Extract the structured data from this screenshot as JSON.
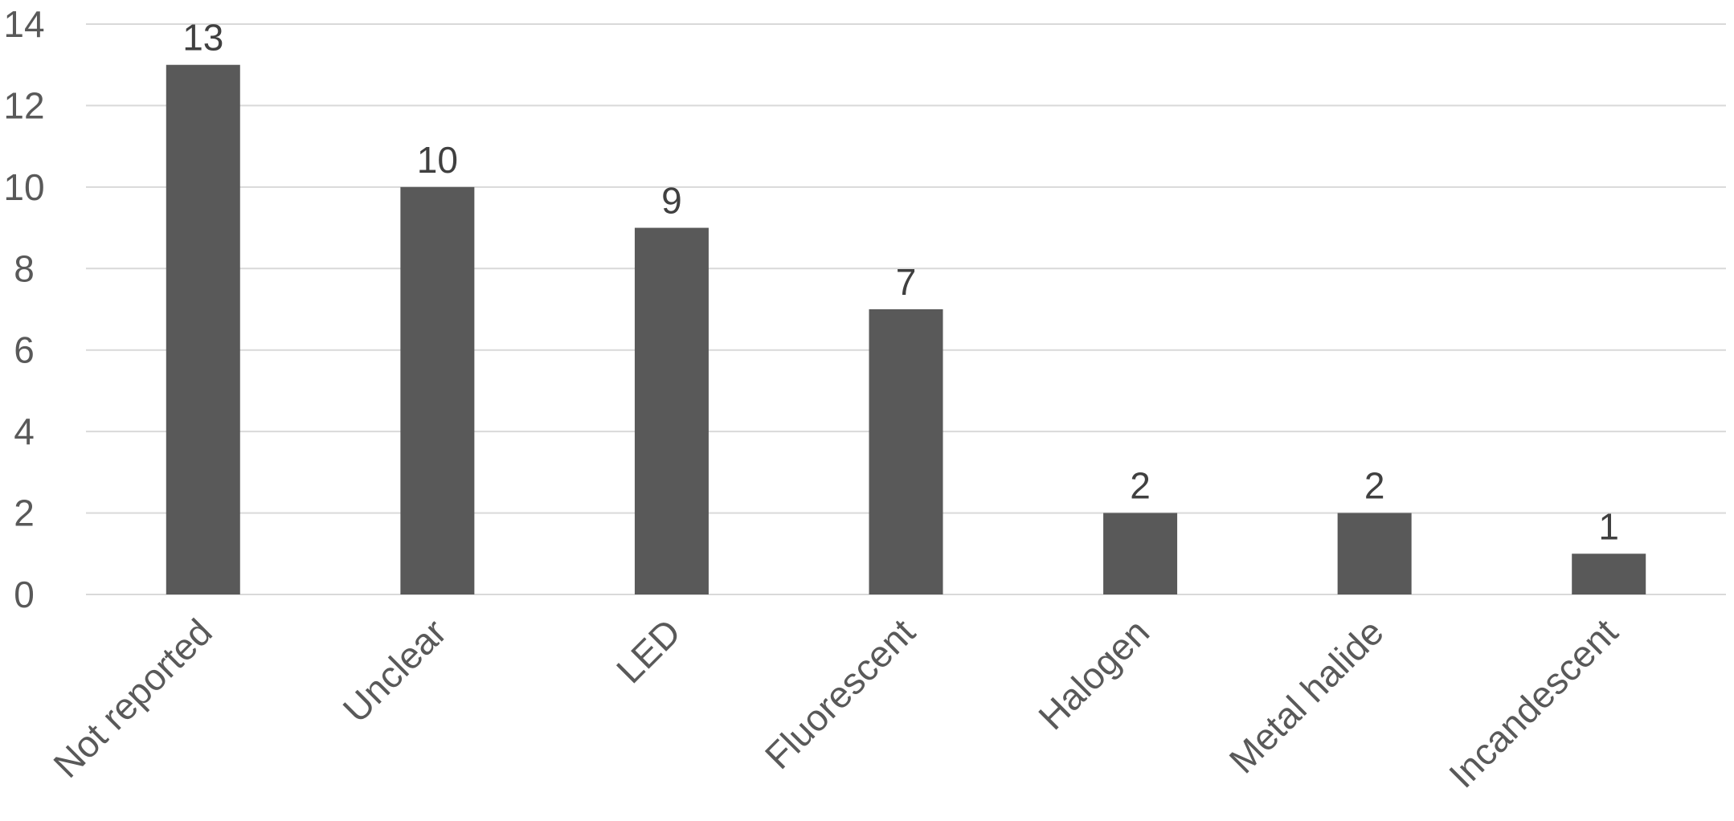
{
  "chart_data": {
    "type": "bar",
    "title": "",
    "xlabel": "",
    "ylabel": "",
    "categories": [
      "Not reported",
      "Unclear",
      "LED",
      "Fluorescent",
      "Halogen",
      "Metal halide",
      "Incandescent"
    ],
    "values": [
      13,
      10,
      9,
      7,
      2,
      2,
      1
    ],
    "ylim": [
      0,
      14
    ],
    "yticks": [
      0,
      2,
      4,
      6,
      8,
      10,
      12,
      14
    ],
    "grid": true,
    "legend": "none",
    "data_labels": true,
    "colors": {
      "bar": "#595959",
      "grid": "#d9d9d9",
      "text": "#595959",
      "data_label": "#404040"
    }
  }
}
